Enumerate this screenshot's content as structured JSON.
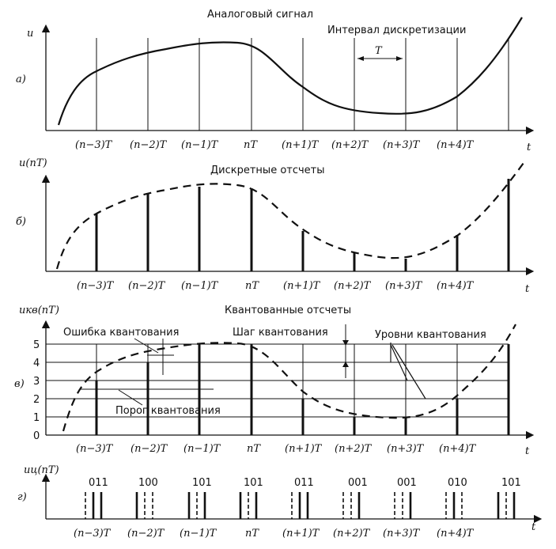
{
  "panels": {
    "a": {
      "letter": "а)",
      "title": "Аналоговый сигнал",
      "y_label": "u",
      "interval_label": "Интервал дискретизации",
      "interval_symbol": "T"
    },
    "b": {
      "letter": "б)",
      "title": "Дискретные отсчеты",
      "y_label": "u(nT)"
    },
    "v": {
      "letter": "в)",
      "title": "Квантованные отсчеты",
      "y_label": "uкв(nT)",
      "levels": [
        "0",
        "1",
        "2",
        "3",
        "4",
        "5"
      ],
      "error_label": "Ошибка квантования",
      "step_label": "Шаг квантования",
      "levels_label": "Уровни квантования",
      "threshold_label": "Порог квантования"
    },
    "g": {
      "letter": "г)",
      "y_label": "uц(nT)",
      "codes": [
        "011",
        "100",
        "101",
        "101",
        "011",
        "001",
        "001",
        "010",
        "101"
      ]
    }
  },
  "time_axis_label": "t",
  "sample_labels": [
    "(n−3)T",
    "(n−2)T",
    "(n−1)T",
    "nT",
    "(n+1)T",
    "(n+2)T",
    "(n+3)T",
    "(n+4)T"
  ]
}
